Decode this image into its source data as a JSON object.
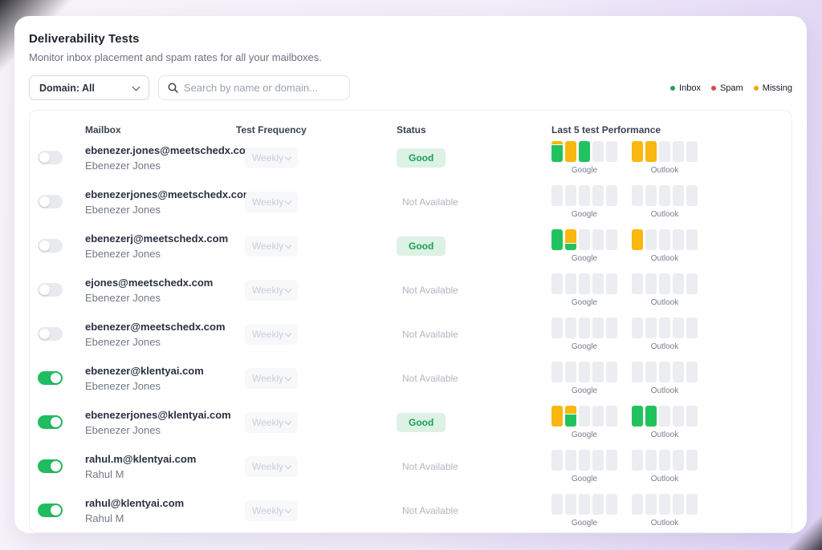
{
  "header": {
    "title": "Deliverability Tests",
    "subtitle": "Monitor inbox placement and spam rates for all your mailboxes."
  },
  "filters": {
    "domain_label": "Domain: All",
    "search_placeholder": "Search by name or domain..."
  },
  "legend": {
    "items": [
      {
        "label": "Inbox",
        "color": "#2aa153"
      },
      {
        "label": "Spam",
        "color": "#e0474b"
      },
      {
        "label": "Missing",
        "color": "#f0a50d"
      }
    ]
  },
  "palette": {
    "inbox": "#21c35e",
    "missing": "#f9b70f",
    "spam": "#e0474b",
    "empty": "#ebedf0",
    "toggle_on": "#1fbd5f",
    "badge_good_bg": "#ddf1e5",
    "badge_good_text": "#17a155"
  },
  "table": {
    "columns": [
      "Mailbox",
      "Test Frequency",
      "Status",
      "Last 5 test Performance"
    ],
    "provider_labels": [
      "Google",
      "Outlook"
    ],
    "rows": [
      {
        "enabled": false,
        "email": "ebenezer.jones@meetschedx.com",
        "name": "Ebenezer Jones",
        "frequency": "Weekly",
        "status": "Good",
        "status_type": "good",
        "google": [
          [
            [
              "missing",
              18
            ],
            [
              "inbox",
              82
            ]
          ],
          [
            [
              "missing",
              100
            ]
          ],
          [
            [
              "inbox",
              100
            ]
          ],
          [
            [
              "empty",
              100
            ]
          ],
          [
            [
              "empty",
              100
            ]
          ]
        ],
        "outlook": [
          [
            [
              "missing",
              100
            ]
          ],
          [
            [
              "missing",
              100
            ]
          ],
          [
            [
              "empty",
              100
            ]
          ],
          [
            [
              "empty",
              100
            ]
          ],
          [
            [
              "empty",
              100
            ]
          ]
        ]
      },
      {
        "enabled": false,
        "email": "ebenezerjones@meetschedx.com",
        "name": "Ebenezer Jones",
        "frequency": "Weekly",
        "status": "Not Available",
        "status_type": "na",
        "google": [
          [
            [
              "empty",
              100
            ]
          ],
          [
            [
              "empty",
              100
            ]
          ],
          [
            [
              "empty",
              100
            ]
          ],
          [
            [
              "empty",
              100
            ]
          ],
          [
            [
              "empty",
              100
            ]
          ]
        ],
        "outlook": [
          [
            [
              "empty",
              100
            ]
          ],
          [
            [
              "empty",
              100
            ]
          ],
          [
            [
              "empty",
              100
            ]
          ],
          [
            [
              "empty",
              100
            ]
          ],
          [
            [
              "empty",
              100
            ]
          ]
        ]
      },
      {
        "enabled": false,
        "email": "ebenezerj@meetschedx.com",
        "name": "Ebenezer Jones",
        "frequency": "Weekly",
        "status": "Good",
        "status_type": "good",
        "google": [
          [
            [
              "inbox",
              100
            ]
          ],
          [
            [
              "missing",
              68
            ],
            [
              "inbox",
              32
            ]
          ],
          [
            [
              "empty",
              100
            ]
          ],
          [
            [
              "empty",
              100
            ]
          ],
          [
            [
              "empty",
              100
            ]
          ]
        ],
        "outlook": [
          [
            [
              "missing",
              100
            ]
          ],
          [
            [
              "empty",
              100
            ]
          ],
          [
            [
              "empty",
              100
            ]
          ],
          [
            [
              "empty",
              100
            ]
          ],
          [
            [
              "empty",
              100
            ]
          ]
        ]
      },
      {
        "enabled": false,
        "email": "ejones@meetschedx.com",
        "name": "Ebenezer Jones",
        "frequency": "Weekly",
        "status": "Not Available",
        "status_type": "na",
        "google": [
          [
            [
              "empty",
              100
            ]
          ],
          [
            [
              "empty",
              100
            ]
          ],
          [
            [
              "empty",
              100
            ]
          ],
          [
            [
              "empty",
              100
            ]
          ],
          [
            [
              "empty",
              100
            ]
          ]
        ],
        "outlook": [
          [
            [
              "empty",
              100
            ]
          ],
          [
            [
              "empty",
              100
            ]
          ],
          [
            [
              "empty",
              100
            ]
          ],
          [
            [
              "empty",
              100
            ]
          ],
          [
            [
              "empty",
              100
            ]
          ]
        ]
      },
      {
        "enabled": false,
        "email": "ebenezer@meetschedx.com",
        "name": "Ebenezer Jones",
        "frequency": "Weekly",
        "status": "Not Available",
        "status_type": "na",
        "google": [
          [
            [
              "empty",
              100
            ]
          ],
          [
            [
              "empty",
              100
            ]
          ],
          [
            [
              "empty",
              100
            ]
          ],
          [
            [
              "empty",
              100
            ]
          ],
          [
            [
              "empty",
              100
            ]
          ]
        ],
        "outlook": [
          [
            [
              "empty",
              100
            ]
          ],
          [
            [
              "empty",
              100
            ]
          ],
          [
            [
              "empty",
              100
            ]
          ],
          [
            [
              "empty",
              100
            ]
          ],
          [
            [
              "empty",
              100
            ]
          ]
        ]
      },
      {
        "enabled": true,
        "email": "ebenezer@klentyai.com",
        "name": "Ebenezer Jones",
        "frequency": "Weekly",
        "status": "Not Available",
        "status_type": "na",
        "google": [
          [
            [
              "empty",
              100
            ]
          ],
          [
            [
              "empty",
              100
            ]
          ],
          [
            [
              "empty",
              100
            ]
          ],
          [
            [
              "empty",
              100
            ]
          ],
          [
            [
              "empty",
              100
            ]
          ]
        ],
        "outlook": [
          [
            [
              "empty",
              100
            ]
          ],
          [
            [
              "empty",
              100
            ]
          ],
          [
            [
              "empty",
              100
            ]
          ],
          [
            [
              "empty",
              100
            ]
          ],
          [
            [
              "empty",
              100
            ]
          ]
        ]
      },
      {
        "enabled": true,
        "email": "ebenezerjones@klentyai.com",
        "name": "Ebenezer Jones",
        "frequency": "Weekly",
        "status": "Good",
        "status_type": "good",
        "google": [
          [
            [
              "missing",
              100
            ]
          ],
          [
            [
              "missing",
              40
            ],
            [
              "inbox",
              60
            ]
          ],
          [
            [
              "empty",
              100
            ]
          ],
          [
            [
              "empty",
              100
            ]
          ],
          [
            [
              "empty",
              100
            ]
          ]
        ],
        "outlook": [
          [
            [
              "inbox",
              100
            ]
          ],
          [
            [
              "inbox",
              100
            ]
          ],
          [
            [
              "empty",
              100
            ]
          ],
          [
            [
              "empty",
              100
            ]
          ],
          [
            [
              "empty",
              100
            ]
          ]
        ]
      },
      {
        "enabled": true,
        "email": "rahul.m@klentyai.com",
        "name": "Rahul M",
        "frequency": "Weekly",
        "status": "Not Available",
        "status_type": "na",
        "google": [
          [
            [
              "empty",
              100
            ]
          ],
          [
            [
              "empty",
              100
            ]
          ],
          [
            [
              "empty",
              100
            ]
          ],
          [
            [
              "empty",
              100
            ]
          ],
          [
            [
              "empty",
              100
            ]
          ]
        ],
        "outlook": [
          [
            [
              "empty",
              100
            ]
          ],
          [
            [
              "empty",
              100
            ]
          ],
          [
            [
              "empty",
              100
            ]
          ],
          [
            [
              "empty",
              100
            ]
          ],
          [
            [
              "empty",
              100
            ]
          ]
        ]
      },
      {
        "enabled": true,
        "email": "rahul@klentyai.com",
        "name": "Rahul M",
        "frequency": "Weekly",
        "status": "Not Available",
        "status_type": "na",
        "google": [
          [
            [
              "empty",
              100
            ]
          ],
          [
            [
              "empty",
              100
            ]
          ],
          [
            [
              "empty",
              100
            ]
          ],
          [
            [
              "empty",
              100
            ]
          ],
          [
            [
              "empty",
              100
            ]
          ]
        ],
        "outlook": [
          [
            [
              "empty",
              100
            ]
          ],
          [
            [
              "empty",
              100
            ]
          ],
          [
            [
              "empty",
              100
            ]
          ],
          [
            [
              "empty",
              100
            ]
          ],
          [
            [
              "empty",
              100
            ]
          ]
        ]
      }
    ]
  }
}
